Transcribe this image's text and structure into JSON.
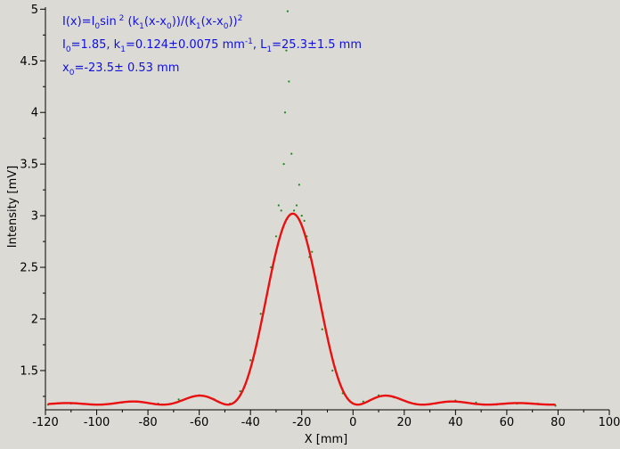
{
  "chart_data": {
    "type": "scatter",
    "xlabel": "X [mm]",
    "ylabel": "Intensity [mV]",
    "xlim": [
      -120,
      100
    ],
    "ylim": [
      1.12,
      5.02
    ],
    "x_ticks": [
      -120,
      -100,
      -80,
      -60,
      -40,
      -20,
      0,
      20,
      40,
      60,
      80,
      100
    ],
    "y_ticks": [
      1.5,
      2,
      2.5,
      3,
      3.5,
      4,
      4.5,
      5
    ],
    "x_tick_labels": [
      "-120",
      "-100",
      "-80",
      "-60",
      "-40",
      "-20",
      "0",
      "20",
      "40",
      "60",
      "80",
      "100"
    ],
    "y_tick_labels": [
      "1.5",
      "2",
      "2.5",
      "3",
      "3.5",
      "4",
      "4.5",
      "5"
    ],
    "grid": false,
    "colors": {
      "data": "#1a8a1a",
      "fit": "#e81010",
      "annotation": "#1010e0",
      "background": "#dcdad5"
    },
    "fit": {
      "formula": "I(x)=I0 sin^2(k1(x-x0))/(k1(x-x0))^2",
      "I0": 1.85,
      "k1": 0.124,
      "L1": 25.3,
      "x0": -23.5,
      "x_range": [
        -119,
        79
      ]
    },
    "data_points": [
      [
        -119,
        1.17
      ],
      [
        -110,
        1.18
      ],
      [
        -100,
        1.17
      ],
      [
        -90,
        1.19
      ],
      [
        -84,
        1.2
      ],
      [
        -76,
        1.18
      ],
      [
        -68,
        1.22
      ],
      [
        -60,
        1.26
      ],
      [
        -54,
        1.22
      ],
      [
        -48,
        1.18
      ],
      [
        -44,
        1.3
      ],
      [
        -40,
        1.6
      ],
      [
        -36,
        2.05
      ],
      [
        -32,
        2.5
      ],
      [
        -30,
        2.8
      ],
      [
        -29,
        3.1
      ],
      [
        -28,
        3.05
      ],
      [
        -27,
        3.5
      ],
      [
        -26.5,
        4.0
      ],
      [
        -26,
        4.6
      ],
      [
        -25.5,
        4.98
      ],
      [
        -25,
        4.3
      ],
      [
        -24,
        3.6
      ],
      [
        -23,
        3.05
      ],
      [
        -22,
        3.1
      ],
      [
        -21,
        3.3
      ],
      [
        -20,
        3.0
      ],
      [
        -19,
        2.95
      ],
      [
        -18,
        2.8
      ],
      [
        -17,
        2.6
      ],
      [
        -16,
        2.65
      ],
      [
        -14,
        2.3
      ],
      [
        -12,
        1.9
      ],
      [
        -8,
        1.5
      ],
      [
        -4,
        1.28
      ],
      [
        0,
        1.18
      ],
      [
        4,
        1.2
      ],
      [
        10,
        1.26
      ],
      [
        16,
        1.24
      ],
      [
        24,
        1.18
      ],
      [
        32,
        1.18
      ],
      [
        40,
        1.21
      ],
      [
        48,
        1.19
      ],
      [
        56,
        1.17
      ],
      [
        64,
        1.18
      ],
      [
        72,
        1.18
      ],
      [
        79,
        1.16
      ]
    ],
    "annotations": {
      "line1_prefix": "I(x)=I",
      "line1_sub0": "0",
      "line1_sin": "sin",
      "line1_sup2": " 2",
      "line1_mid": " (k",
      "line1_sub1": "1",
      "line1_mid2": "(x-x",
      "line1_sub0b": "0",
      "line1_mid3": "))/(k",
      "line1_sub1b": "1",
      "line1_mid4": "(x-x",
      "line1_sub0c": "0",
      "line1_end": "))",
      "line1_sup2b": "2",
      "line2_I": "I",
      "line2_sub0": "0",
      "line2_I0": "=1.85,  k",
      "line2_sub1": "1",
      "line2_k": "=0.124±0.0075 mm",
      "line2_sup": "-1",
      "line2_L": ",   L",
      "line2_subL": "1",
      "line2_Lval": "=25.3±1.5 mm",
      "line3_x": "x",
      "line3_sub0": "0",
      "line3_val": "=-23.5±   0.53 mm"
    }
  }
}
